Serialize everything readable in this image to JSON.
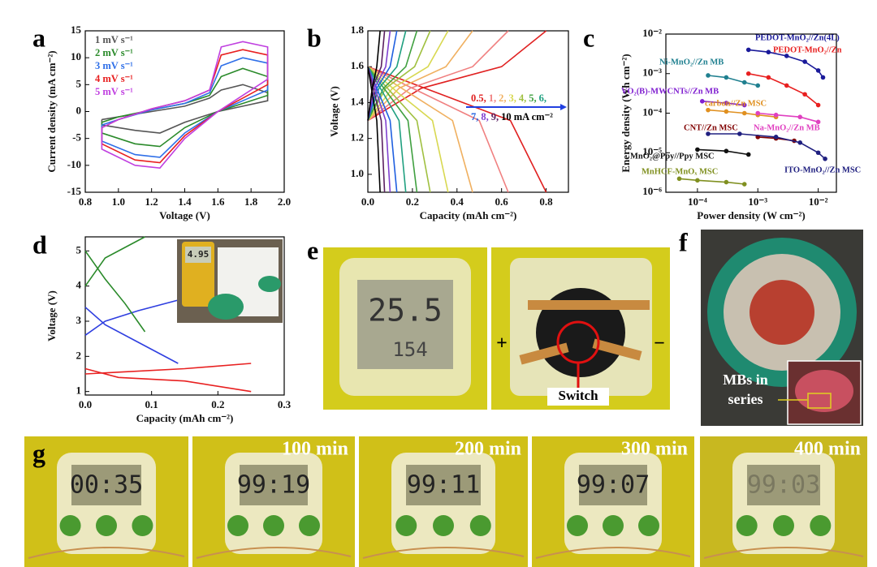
{
  "chart_data": [
    {
      "panel": "a",
      "type": "line",
      "x_label": "Voltage (V)",
      "y_label": "Current density (mA cm⁻²)",
      "xlim": [
        0.8,
        2.0
      ],
      "xticks": [
        0.8,
        {
          "value": 1,
          "label": "1.0"
        },
        1.2,
        1.4,
        1.6,
        1.8,
        {
          "value": 2,
          "label": "2.0"
        }
      ],
      "ylim": [
        -15,
        15
      ],
      "yticks": [
        -15,
        -10,
        -5,
        0,
        5,
        10,
        15
      ],
      "legend": "upper left",
      "x": [
        0.9,
        1.0,
        1.2,
        1.4,
        1.55,
        1.62,
        1.75,
        1.9,
        1.9,
        1.75,
        1.6,
        1.4,
        1.25,
        1.1,
        0.9,
        0.9
      ],
      "series": [
        {
          "name": "1 mV s⁻¹",
          "color": "#555555",
          "values": [
            -1.5,
            -1,
            0,
            1,
            2.5,
            4,
            5,
            3.5,
            2,
            1,
            0,
            -2,
            -4,
            -3.5,
            -2.5,
            -1.5
          ]
        },
        {
          "name": "2 mV s⁻¹",
          "color": "#2a8a2a",
          "values": [
            -2,
            -1,
            0.3,
            1.5,
            3,
            6.5,
            8,
            6.5,
            3,
            1.5,
            0,
            -3,
            -6.5,
            -6,
            -4,
            -2
          ]
        },
        {
          "name": "3 mV s⁻¹",
          "color": "#2f6fe8",
          "values": [
            -2.5,
            -1.5,
            0.3,
            1.5,
            3.5,
            8.5,
            10,
            9,
            4,
            2,
            0,
            -4,
            -8.5,
            -8,
            -5.5,
            -2.5
          ]
        },
        {
          "name": "4 mV s⁻¹",
          "color": "#e82020",
          "values": [
            -3,
            -1.5,
            0.5,
            2,
            4,
            10.5,
            11.5,
            10.5,
            5,
            2.5,
            0,
            -4.5,
            -9.5,
            -9,
            -6,
            -3
          ]
        },
        {
          "name": "5 mV s⁻¹",
          "color": "#c040e0",
          "values": [
            -3,
            -1.5,
            0.5,
            2,
            4,
            12,
            13,
            12,
            6,
            3,
            0,
            -5,
            -10.5,
            -10,
            -7,
            -3
          ]
        }
      ]
    },
    {
      "panel": "b",
      "type": "line",
      "x_label": "Capacity (mAh cm⁻²)",
      "y_label": "Voltage (V)",
      "xlim": [
        0,
        0.9
      ],
      "xticks": [
        {
          "value": 0,
          "label": "0.0"
        },
        0.2,
        0.4,
        0.6,
        0.8
      ],
      "ylim": [
        0.9,
        1.8
      ],
      "yticks": [
        {
          "value": 1,
          "label": "1.0"
        },
        1.2,
        1.4,
        1.6,
        1.8
      ],
      "legend": "center right",
      "series": [
        {
          "name": "0.5,",
          "color": "#e02020",
          "x": [
            0,
            0.24,
            0.6,
            0.8,
            null,
            0,
            0.32,
            0.64,
            0.8
          ],
          "values": [
            1.3,
            1.48,
            1.6,
            1.8,
            null,
            1.6,
            1.45,
            1.3,
            0.9
          ]
        },
        {
          "name": "1,",
          "color": "#f08080",
          "x": [
            0,
            0.19,
            0.47,
            0.63,
            null,
            0,
            0.25,
            0.5,
            0.63
          ],
          "values": [
            1.3,
            1.48,
            1.6,
            1.8,
            null,
            1.6,
            1.45,
            1.3,
            0.9
          ]
        },
        {
          "name": "2,",
          "color": "#f0b060",
          "x": [
            0,
            0.14,
            0.35,
            0.47,
            null,
            0,
            0.19,
            0.38,
            0.47
          ],
          "values": [
            1.3,
            1.48,
            1.6,
            1.8,
            null,
            1.6,
            1.45,
            1.3,
            0.9
          ]
        },
        {
          "name": "3,",
          "color": "#d8d850",
          "x": [
            0,
            0.11,
            0.27,
            0.36,
            null,
            0,
            0.14,
            0.29,
            0.36
          ],
          "values": [
            1.3,
            1.48,
            1.6,
            1.8,
            null,
            1.6,
            1.45,
            1.3,
            0.9
          ]
        },
        {
          "name": "4,",
          "color": "#a0c040",
          "x": [
            0,
            0.08,
            0.21,
            0.28,
            null,
            0,
            0.11,
            0.22,
            0.28
          ],
          "values": [
            1.3,
            1.48,
            1.6,
            1.8,
            null,
            1.6,
            1.45,
            1.3,
            0.9
          ]
        },
        {
          "name": "5,",
          "color": "#40a040",
          "x": [
            0,
            0.07,
            0.17,
            0.22,
            null,
            0,
            0.09,
            0.18,
            0.22
          ],
          "values": [
            1.3,
            1.48,
            1.6,
            1.8,
            null,
            1.6,
            1.45,
            1.3,
            0.9
          ]
        },
        {
          "name": "6,",
          "color": "#20a080",
          "x": [
            0,
            0.05,
            0.13,
            0.17,
            null,
            0,
            0.07,
            0.14,
            0.17
          ],
          "values": [
            1.3,
            1.48,
            1.6,
            1.8,
            null,
            1.6,
            1.45,
            1.3,
            0.9
          ]
        },
        {
          "name": "7,",
          "color": "#2060e0",
          "x": [
            0,
            0.04,
            0.1,
            0.13,
            null,
            0,
            0.05,
            0.1,
            0.13
          ],
          "values": [
            1.3,
            1.48,
            1.6,
            1.8,
            null,
            1.6,
            1.45,
            1.3,
            0.9
          ]
        },
        {
          "name": "8,",
          "color": "#8040d0",
          "x": [
            0,
            0.03,
            0.08,
            0.1,
            null,
            0,
            0.04,
            0.08,
            0.1
          ],
          "values": [
            1.3,
            1.48,
            1.6,
            1.8,
            null,
            1.6,
            1.45,
            1.3,
            0.9
          ]
        },
        {
          "name": "9,",
          "color": "#5a2060",
          "x": [
            0,
            0.02,
            0.06,
            0.075,
            null,
            0,
            0.03,
            0.06,
            0.075
          ],
          "values": [
            1.3,
            1.48,
            1.6,
            1.8,
            null,
            1.6,
            1.45,
            1.3,
            0.9
          ]
        },
        {
          "name": "10 mA cm⁻²",
          "color": "#000000",
          "x": [
            0,
            0.02,
            0.04,
            0.055,
            null,
            0,
            0.02,
            0.04,
            0.055
          ],
          "values": [
            1.3,
            1.48,
            1.6,
            1.8,
            null,
            1.6,
            1.45,
            1.3,
            0.9
          ]
        }
      ]
    },
    {
      "panel": "c",
      "type": "line",
      "x_label": "Power density (W cm⁻²)",
      "y_label": "Energy density (Wh cm⁻²)",
      "log_x": true,
      "log_y": true,
      "markers": true,
      "xlim": [
        3e-05,
        0.02
      ],
      "xticks": [
        {
          "value": 0.0001,
          "label": "10⁻⁴"
        },
        {
          "value": 0.001,
          "label": "10⁻³"
        },
        {
          "value": 0.01,
          "label": "10⁻²"
        }
      ],
      "ylim": [
        1e-06,
        0.01
      ],
      "yticks": [
        {
          "value": 1e-06,
          "label": "10⁻⁶"
        },
        {
          "value": 1e-05,
          "label": "10⁻⁵"
        },
        {
          "value": 0.0001,
          "label": "10⁻⁴"
        },
        {
          "value": 0.001,
          "label": "10⁻³"
        },
        {
          "value": 0.01,
          "label": "10⁻²"
        }
      ],
      "series": [
        {
          "name": "PEDOT-MnO₂//Zn(4L)",
          "color": "#1a1a9a",
          "x": [
            0.0007,
            0.0015,
            0.003,
            0.006,
            0.01,
            0.012
          ],
          "values": [
            0.004,
            0.0035,
            0.0028,
            0.002,
            0.0012,
            0.0008
          ]
        },
        {
          "name": "PEDOT-MnO₂//Zn",
          "color": "#e82020",
          "x": [
            0.0007,
            0.0015,
            0.003,
            0.006,
            0.01
          ],
          "values": [
            0.001,
            0.0008,
            0.0005,
            0.0003,
            0.00016
          ]
        },
        {
          "name": "Ni-MnO₂//Zn MB",
          "color": "#208090",
          "x": [
            0.00015,
            0.0003,
            0.0006,
            0.001
          ],
          "values": [
            0.0009,
            0.0008,
            0.0006,
            0.0005
          ]
        },
        {
          "name": "VO₂(B)-MWCNTs//Zn MB",
          "color": "#8020d0",
          "x": [
            0.00012,
            0.0003,
            0.0006
          ],
          "values": [
            0.0002,
            0.00018,
            0.00016
          ]
        },
        {
          "name": "carbon//Zn MSC",
          "color": "#e09020",
          "x": [
            0.00015,
            0.0003,
            0.0006,
            0.001,
            0.002
          ],
          "values": [
            0.00012,
            0.00011,
            0.0001,
            9e-05,
            8e-05
          ]
        },
        {
          "name": "Na-MnO₂//Zn MB",
          "color": "#e040c0",
          "x": [
            0.001,
            0.002,
            0.005,
            0.01
          ],
          "values": [
            0.0001,
            9e-05,
            8e-05,
            6e-05
          ]
        },
        {
          "name": "CNT//Zn MSC",
          "color": "#800000",
          "x": [
            0.001,
            0.002,
            0.004
          ],
          "values": [
            2.5e-05,
            2.3e-05,
            2e-05
          ]
        },
        {
          "name": "ITO-MnO₂//Zn MSC",
          "color": "#202080",
          "x": [
            0.00015,
            0.0005,
            0.002,
            0.005,
            0.01,
            0.013
          ],
          "values": [
            3e-05,
            3e-05,
            2.5e-05,
            1.8e-05,
            1e-05,
            7e-06
          ]
        },
        {
          "name": "MnO₂@Ppy//Ppy MSC",
          "color": "#111111",
          "x": [
            0.0001,
            0.0003,
            0.0007
          ],
          "values": [
            1.2e-05,
            1.1e-05,
            9e-06
          ]
        },
        {
          "name": "MnHCF-MnOₓ MSC",
          "color": "#809020",
          "x": [
            5e-05,
            0.0001,
            0.0003,
            0.0006
          ],
          "values": [
            2.2e-06,
            2e-06,
            1.8e-06,
            1.6e-06
          ]
        }
      ]
    },
    {
      "panel": "d",
      "type": "line",
      "x_label": "Capacity (mAh cm⁻²)",
      "y_label": "Voltage (V)",
      "xlim": [
        0,
        0.3
      ],
      "xticks": [
        {
          "value": 0,
          "label": "0.0"
        },
        0.1,
        0.2,
        0.3
      ],
      "ylim": [
        0.9,
        5.4
      ],
      "yticks": [
        1,
        2,
        3,
        4,
        5
      ],
      "series": [
        {
          "color": "#e82020",
          "x": [
            0,
            0.05,
            0.15,
            0.25,
            null,
            0,
            0.05,
            0.15,
            0.25
          ],
          "values": [
            1.5,
            1.55,
            1.65,
            1.8,
            null,
            1.65,
            1.4,
            1.3,
            1.0
          ]
        },
        {
          "color": "#2f3fe0",
          "x": [
            0,
            0.03,
            0.08,
            0.14,
            null,
            0,
            0.03,
            0.08,
            0.14
          ],
          "values": [
            2.6,
            3.0,
            3.3,
            3.6,
            null,
            3.4,
            2.9,
            2.4,
            1.8
          ]
        },
        {
          "color": "#2a8a2a",
          "x": [
            0,
            0.03,
            0.06,
            0.09,
            null,
            0,
            0.03,
            0.06,
            0.09
          ],
          "values": [
            4,
            4.8,
            5.1,
            5.4,
            null,
            5.0,
            4.2,
            3.5,
            2.7
          ]
        }
      ]
    }
  ],
  "photos": {
    "d_inset": {
      "display": "4.95"
    },
    "e": {
      "panel": "e",
      "temperature": "25.5",
      "humidity": "154",
      "plus": "+",
      "minus": "−",
      "switch": "Switch"
    },
    "f": {
      "panel": "f",
      "label": [
        "MBs in",
        "series"
      ]
    },
    "g": {
      "panel": "g",
      "displays": [
        "00:35",
        "99:19",
        "99:11",
        "99:07",
        "99:03"
      ],
      "times": [
        "100 min",
        "200 min",
        "300 min",
        "400 min"
      ]
    }
  }
}
